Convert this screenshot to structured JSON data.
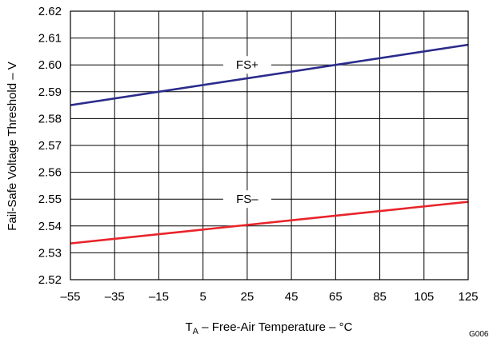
{
  "chart_data": {
    "type": "line",
    "title": "",
    "xlabel": {
      "symbol": "T",
      "subscript": "A",
      "rest": " – Free-Air Temperature – °C"
    },
    "ylabel": "Fail-Safe Voltage Threshold – V",
    "xlim": [
      -55,
      125
    ],
    "ylim": [
      2.52,
      2.62
    ],
    "xticks": [
      -55,
      -35,
      -15,
      5,
      25,
      45,
      65,
      85,
      105,
      125
    ],
    "xtick_labels": [
      "–55",
      "–35",
      "–15",
      "5",
      "25",
      "45",
      "65",
      "85",
      "105",
      "125"
    ],
    "yticks": [
      2.52,
      2.53,
      2.54,
      2.55,
      2.56,
      2.57,
      2.58,
      2.59,
      2.6,
      2.61,
      2.62
    ],
    "ytick_labels": [
      "2.52",
      "2.53",
      "2.54",
      "2.55",
      "2.56",
      "2.57",
      "2.58",
      "2.59",
      "2.60",
      "2.61",
      "2.62"
    ],
    "grid": true,
    "series": [
      {
        "name": "FS+",
        "color": "#2b2b8c",
        "x": [
          -55,
          125
        ],
        "y": [
          2.585,
          2.6075
        ],
        "label_at": {
          "x": 25,
          "y": 2.6
        }
      },
      {
        "name": "FS–",
        "color": "#e8242a",
        "x": [
          -55,
          125
        ],
        "y": [
          2.5335,
          2.549
        ],
        "label_at": {
          "x": 25,
          "y": 2.55
        }
      }
    ]
  },
  "figure_id": "G006"
}
